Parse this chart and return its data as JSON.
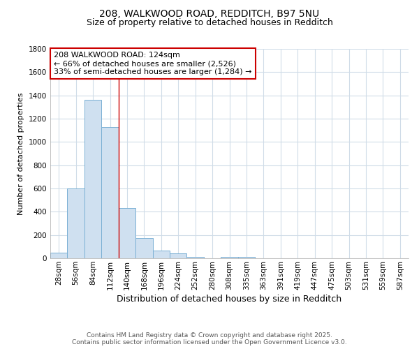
{
  "title_line1": "208, WALKWOOD ROAD, REDDITCH, B97 5NU",
  "title_line2": "Size of property relative to detached houses in Redditch",
  "xlabel": "Distribution of detached houses by size in Redditch",
  "ylabel": "Number of detached properties",
  "categories": [
    "28sqm",
    "56sqm",
    "84sqm",
    "112sqm",
    "140sqm",
    "168sqm",
    "196sqm",
    "224sqm",
    "252sqm",
    "280sqm",
    "308sqm",
    "335sqm",
    "363sqm",
    "391sqm",
    "419sqm",
    "447sqm",
    "475sqm",
    "503sqm",
    "531sqm",
    "559sqm",
    "587sqm"
  ],
  "values": [
    50,
    600,
    1360,
    1130,
    430,
    175,
    68,
    42,
    15,
    0,
    10,
    10,
    0,
    0,
    0,
    0,
    0,
    0,
    0,
    0,
    0
  ],
  "bar_color": "#cfe0f0",
  "bar_edge_color": "#7ab0d4",
  "red_line_x": 3.5,
  "annotation_text": "208 WALKWOOD ROAD: 124sqm\n← 66% of detached houses are smaller (2,526)\n33% of semi-detached houses are larger (1,284) →",
  "annotation_box_color": "#ffffff",
  "annotation_box_edge": "#cc0000",
  "ylim": [
    0,
    1800
  ],
  "yticks": [
    0,
    200,
    400,
    600,
    800,
    1000,
    1200,
    1400,
    1600,
    1800
  ],
  "footer_line1": "Contains HM Land Registry data © Crown copyright and database right 2025.",
  "footer_line2": "Contains public sector information licensed under the Open Government Licence v3.0.",
  "background_color": "#ffffff",
  "grid_color": "#d0dce8",
  "title_fontsize": 10,
  "subtitle_fontsize": 9,
  "ylabel_fontsize": 8,
  "xlabel_fontsize": 9,
  "tick_fontsize": 7.5,
  "footer_fontsize": 6.5,
  "annotation_fontsize": 8
}
